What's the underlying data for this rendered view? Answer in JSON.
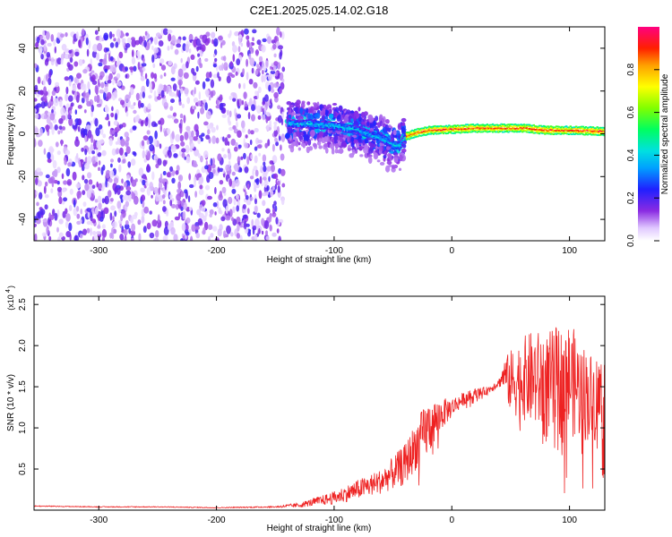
{
  "title": "C2E1.2025.025.14.02.G18",
  "chart_data": [
    {
      "type": "heatmap",
      "xlabel": "Height of straight line (km)",
      "ylabel": "Frequency (Hz)",
      "xlim": [
        -355,
        130
      ],
      "ylim": [
        -50,
        50
      ],
      "xticks": [
        -300,
        -200,
        -100,
        0,
        100
      ],
      "yticks": [
        -40,
        -20,
        0,
        20,
        40
      ],
      "colorbar": {
        "label": "Normalized spectral amplitude",
        "range": [
          0.0,
          1.0
        ],
        "ticks": [
          "0.0",
          "0.2",
          "0.4",
          "0.6",
          "0.8"
        ],
        "tick_values": [
          0.0,
          0.2,
          0.4,
          0.6,
          0.8
        ]
      },
      "regions": [
        {
          "x_range": [
            -355,
            -143
          ],
          "freq_range": [
            -50,
            48
          ],
          "amplitude": [
            0.02,
            0.2
          ]
        },
        {
          "x_range": [
            -140,
            -40
          ],
          "freq_range": [
            -20,
            10
          ],
          "amplitude": [
            0.1,
            0.55
          ]
        },
        {
          "x_range": [
            -40,
            130
          ],
          "freq_range": [
            -2,
            4
          ],
          "amplitude": [
            0.4,
            0.95
          ]
        }
      ],
      "ridge": {
        "x": [
          -160,
          -140,
          -120,
          -100,
          -80,
          -70,
          -60,
          -50,
          -45,
          -40,
          -30,
          -20,
          0,
          20,
          40,
          60,
          80,
          100,
          130
        ],
        "freq": [
          4,
          5,
          5,
          4,
          2,
          0,
          -2,
          -5,
          -5,
          -1,
          1,
          2,
          2.5,
          3,
          3,
          3,
          2,
          2,
          1.5
        ]
      }
    },
    {
      "type": "line",
      "xlabel": "Height of straight line (km)",
      "ylabel": "SNR (10 * v/v)",
      "scale_label": "(x10",
      "scale_exponent": "4",
      "xlim": [
        -355,
        130
      ],
      "ylim": [
        0,
        2.6
      ],
      "xticks": [
        -300,
        -200,
        -100,
        0,
        100
      ],
      "yticks": [
        0.5,
        1.0,
        1.5,
        2.0,
        2.5
      ],
      "ytick_labels": [
        "0.5",
        "1.0",
        "1.5",
        "2.0",
        "2.5"
      ],
      "color": "#ee2222",
      "series": [
        {
          "x": [
            -355,
            -300,
            -250,
            -200,
            -150,
            -130,
            -110,
            -100,
            -80,
            -60,
            -40,
            -30,
            -20,
            -10,
            0,
            10,
            20,
            30,
            40,
            45,
            50,
            60,
            70,
            80,
            90,
            100,
            110,
            120,
            130
          ],
          "y": [
            0.05,
            0.04,
            0.04,
            0.03,
            0.04,
            0.06,
            0.12,
            0.15,
            0.25,
            0.35,
            0.55,
            0.8,
            1.0,
            1.15,
            1.25,
            1.35,
            1.42,
            1.45,
            1.55,
            1.65,
            1.55,
            1.6,
            1.6,
            1.5,
            1.55,
            1.6,
            1.45,
            1.35,
            1.4
          ],
          "noise": [
            0.005,
            0.005,
            0.005,
            0.005,
            0.008,
            0.03,
            0.06,
            0.08,
            0.12,
            0.15,
            0.25,
            0.3,
            0.35,
            0.2,
            0.12,
            0.08,
            0.06,
            0.05,
            0.05,
            0.2,
            0.4,
            0.5,
            0.6,
            0.65,
            0.7,
            0.7,
            0.6,
            0.55,
            0.55
          ]
        }
      ]
    }
  ]
}
